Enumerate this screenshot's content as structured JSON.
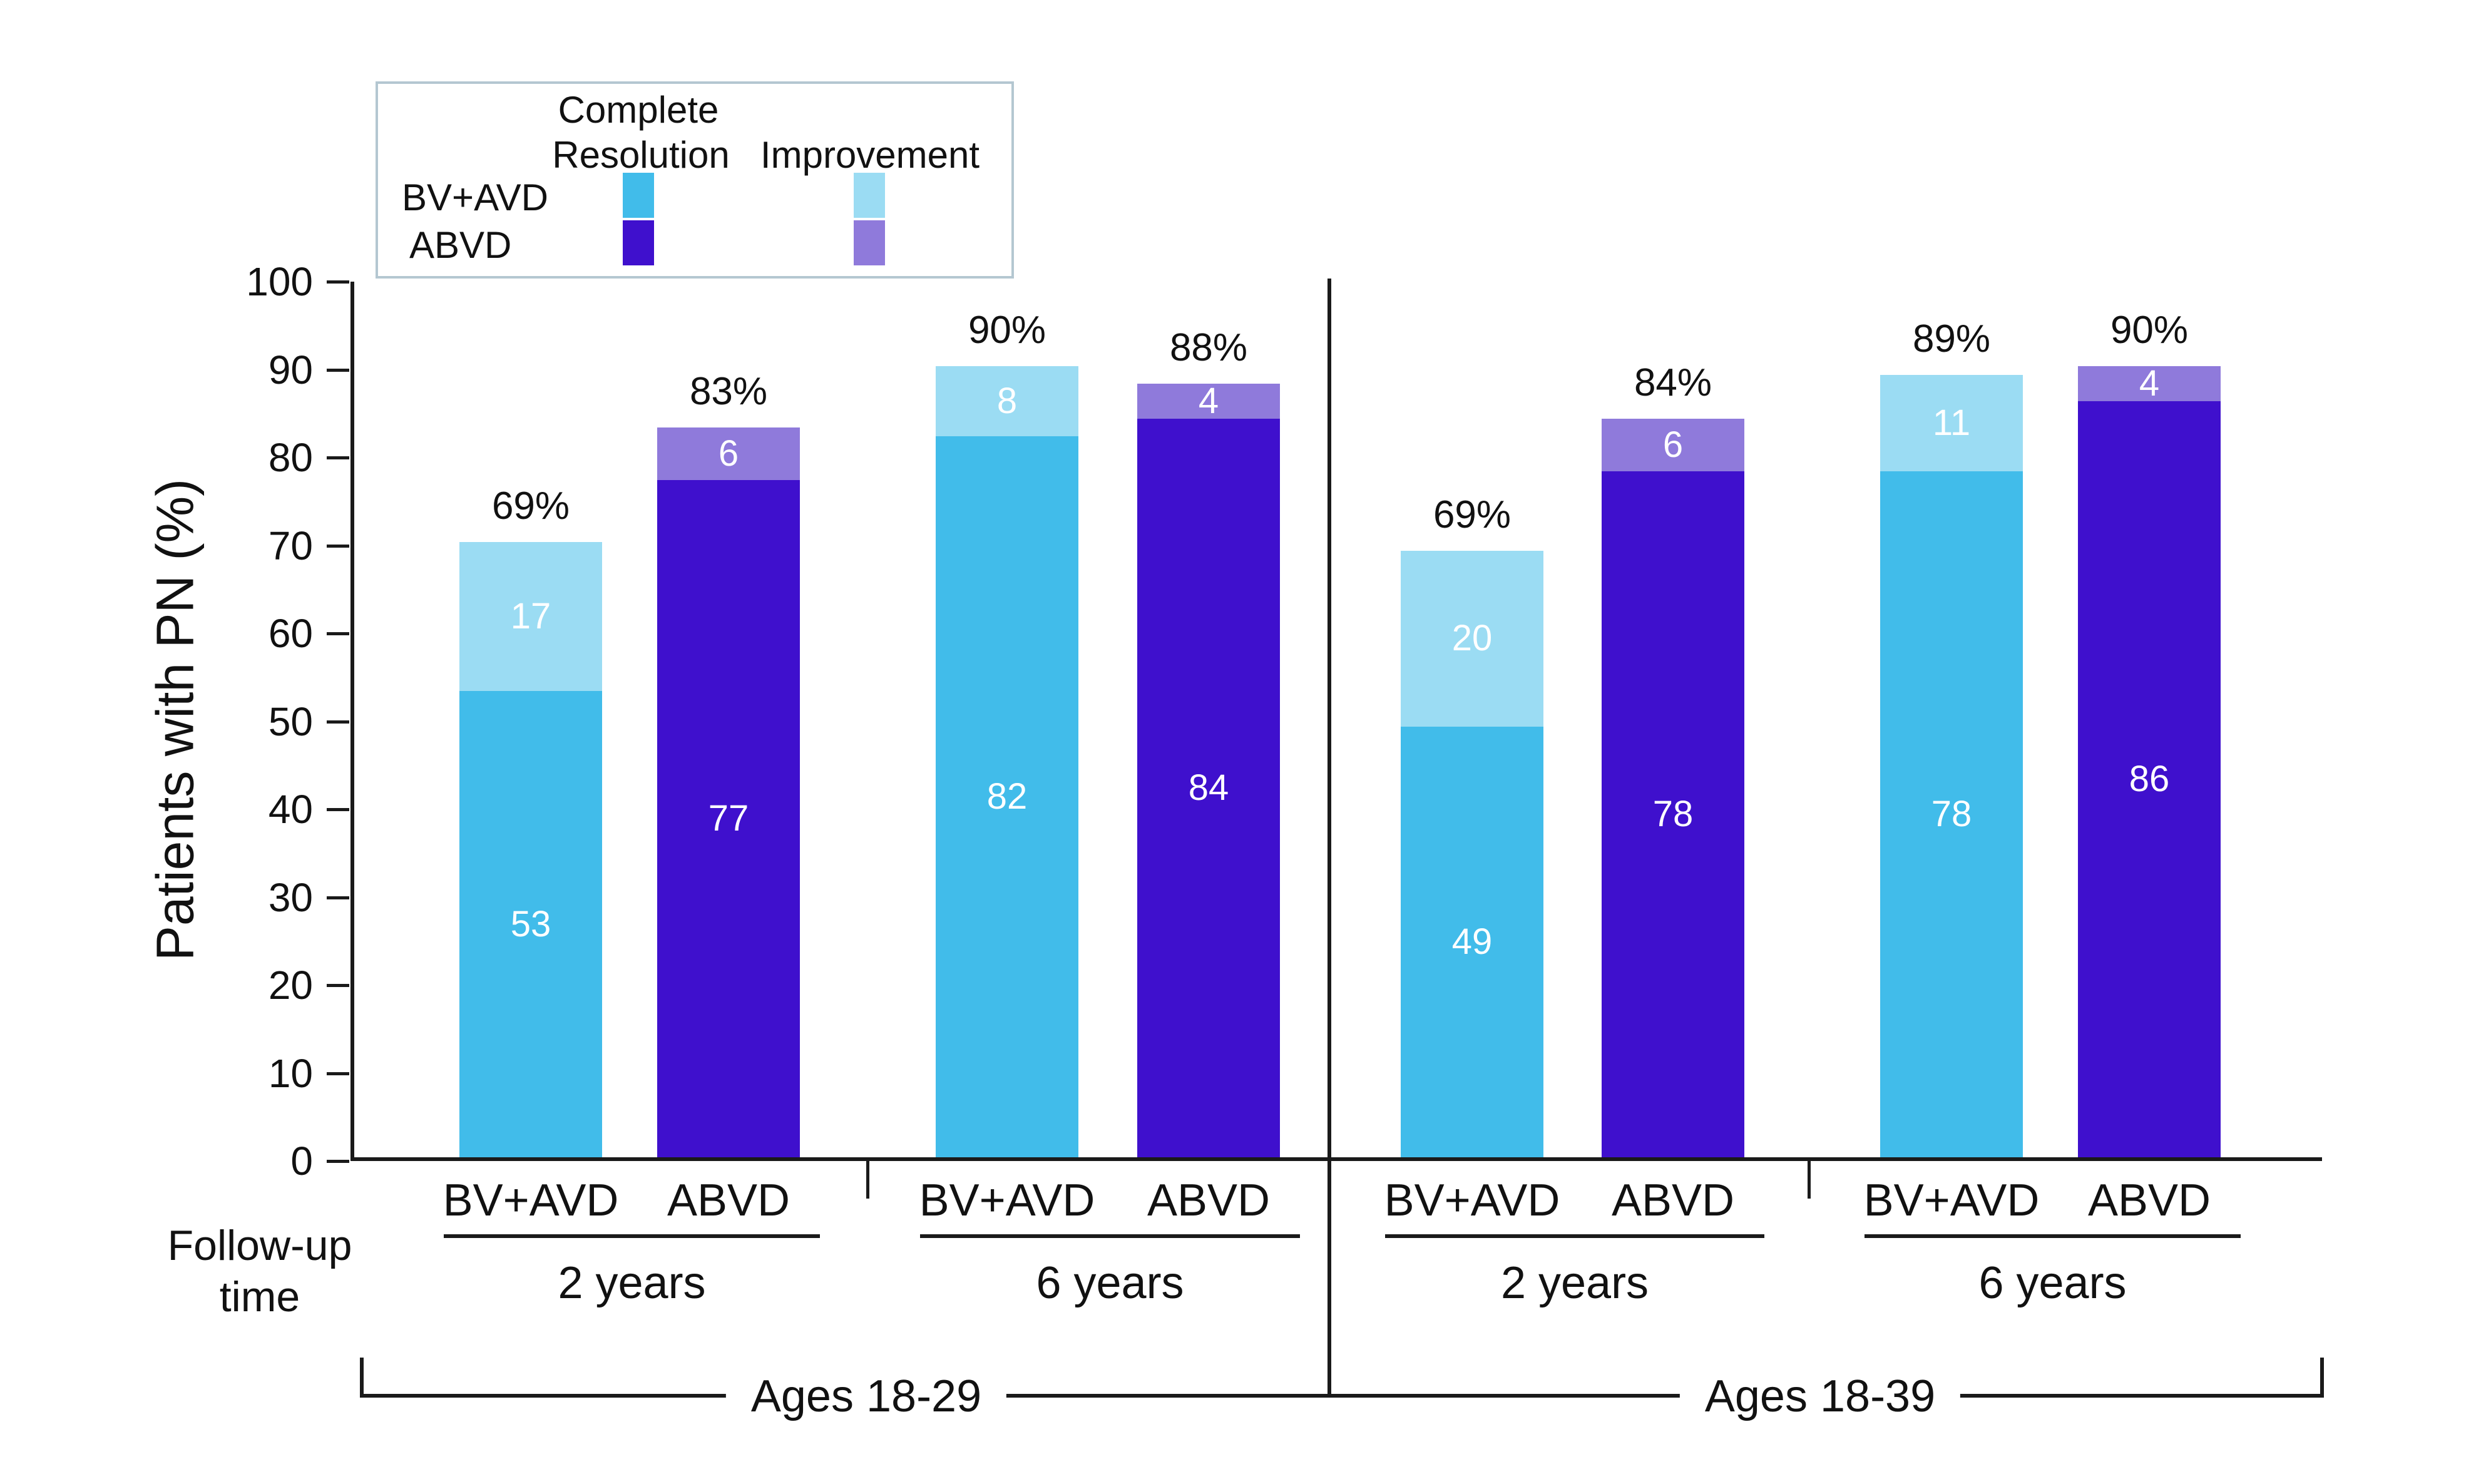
{
  "figure": {
    "ylabel": "Patients with PN (%)",
    "followup_label_line1": "Follow-up",
    "followup_label_line2": "time"
  },
  "legend": {
    "header_col1_line1": "Complete",
    "header_col1_line2": "Resolution",
    "header_col2": "Improvement",
    "row1_label": "BV+AVD",
    "row2_label": "ABVD"
  },
  "colors": {
    "bv_avd_complete": "#41BCEA",
    "bv_avd_improvement": "#9BDCF3",
    "abvd_complete": "#3F10CD",
    "abvd_improvement": "#8F7ADB",
    "axis": "#1a1a1a",
    "legend_border": "#b4c7d1"
  },
  "chart_data": {
    "type": "bar",
    "stacked": true,
    "title": "",
    "xlabel": "Follow-up time",
    "ylabel": "Patients with PN (%)",
    "ylim": [
      0,
      100
    ],
    "yticks": [
      0,
      10,
      20,
      30,
      40,
      50,
      60,
      70,
      80,
      90,
      100
    ],
    "grid": false,
    "legend_position": "top-left",
    "legend": {
      "columns": [
        "Complete Resolution",
        "Improvement"
      ],
      "rows": [
        "BV+AVD",
        "ABVD"
      ]
    },
    "age_groups": [
      {
        "label": "Ages 18-29",
        "time_groups": [
          {
            "label": "2 years",
            "bars": [
              {
                "regimen": "BV+AVD",
                "complete_resolution": 53,
                "improvement": 17,
                "total_label": "69%"
              },
              {
                "regimen": "ABVD",
                "complete_resolution": 77,
                "improvement": 6,
                "total_label": "83%"
              }
            ]
          },
          {
            "label": "6 years",
            "bars": [
              {
                "regimen": "BV+AVD",
                "complete_resolution": 82,
                "improvement": 8,
                "total_label": "90%"
              },
              {
                "regimen": "ABVD",
                "complete_resolution": 84,
                "improvement": 4,
                "total_label": "88%"
              }
            ]
          }
        ]
      },
      {
        "label": "Ages 18-39",
        "time_groups": [
          {
            "label": "2 years",
            "bars": [
              {
                "regimen": "BV+AVD",
                "complete_resolution": 49,
                "improvement": 20,
                "total_label": "69%"
              },
              {
                "regimen": "ABVD",
                "complete_resolution": 78,
                "improvement": 6,
                "total_label": "84%"
              }
            ]
          },
          {
            "label": "6 years",
            "bars": [
              {
                "regimen": "BV+AVD",
                "complete_resolution": 78,
                "improvement": 11,
                "total_label": "89%"
              },
              {
                "regimen": "ABVD",
                "complete_resolution": 86,
                "improvement": 4,
                "total_label": "90%"
              }
            ]
          }
        ]
      }
    ]
  }
}
